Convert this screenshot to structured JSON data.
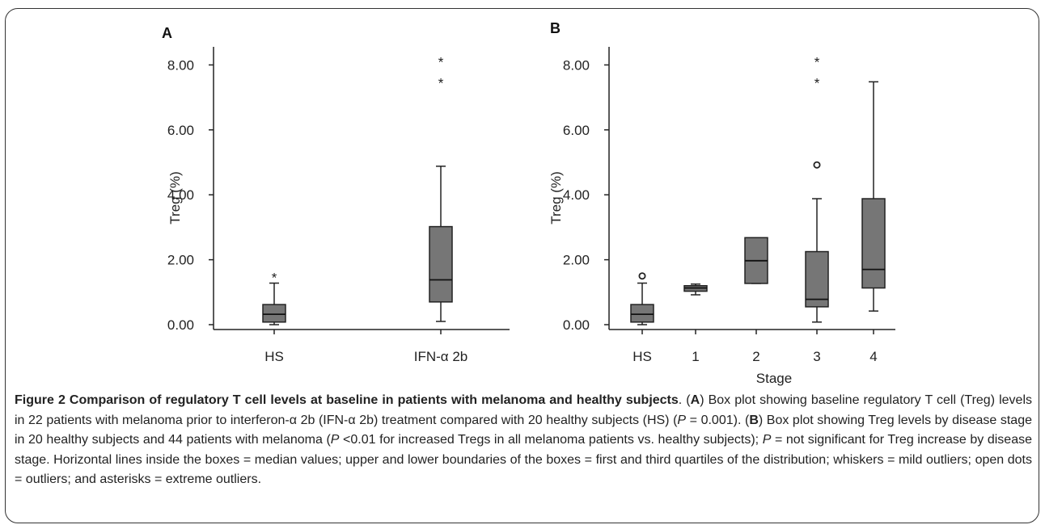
{
  "chart_data": [
    {
      "type": "boxplot",
      "panel": "A",
      "ylabel": "Treg (%)",
      "xlabel": "",
      "ylim": [
        0,
        8.5
      ],
      "yticks": [
        "0.00",
        "2.00",
        "4.00",
        "6.00",
        "8.00"
      ],
      "ytick_values": [
        0,
        2,
        4,
        6,
        8
      ],
      "grid": false,
      "categories": [
        "HS",
        "IFN-α 2b"
      ],
      "boxes": [
        {
          "category": "HS",
          "min": 0.0,
          "q1": 0.08,
          "median": 0.32,
          "q3": 0.62,
          "max": 1.28,
          "outliers": [],
          "extreme_outliers": [
            1.55
          ]
        },
        {
          "category": "IFN-α 2b",
          "min": 0.1,
          "q1": 0.7,
          "median": 1.38,
          "q3": 3.02,
          "max": 4.88,
          "outliers": [],
          "extreme_outliers": [
            7.55,
            8.2
          ]
        }
      ]
    },
    {
      "type": "boxplot",
      "panel": "B",
      "ylabel": "Treg (%)",
      "xlabel": "Stage",
      "ylim": [
        0,
        8.5
      ],
      "yticks": [
        "0.00",
        "2.00",
        "4.00",
        "6.00",
        "8.00"
      ],
      "ytick_values": [
        0,
        2,
        4,
        6,
        8
      ],
      "grid": false,
      "categories": [
        "HS",
        "1",
        "2",
        "3",
        "4"
      ],
      "boxes": [
        {
          "category": "HS",
          "min": 0.0,
          "q1": 0.08,
          "median": 0.32,
          "q3": 0.62,
          "max": 1.28,
          "outliers": [
            1.5
          ],
          "extreme_outliers": []
        },
        {
          "category": "1",
          "min": 0.92,
          "q1": 1.03,
          "median": 1.13,
          "q3": 1.2,
          "max": 1.25,
          "outliers": [],
          "extreme_outliers": []
        },
        {
          "category": "2",
          "min": 1.27,
          "q1": 1.27,
          "median": 1.97,
          "q3": 2.68,
          "max": 2.68,
          "outliers": [],
          "extreme_outliers": []
        },
        {
          "category": "3",
          "min": 0.08,
          "q1": 0.55,
          "median": 0.78,
          "q3": 2.25,
          "max": 3.88,
          "outliers": [
            4.92
          ],
          "extreme_outliers": [
            7.55,
            8.2
          ]
        },
        {
          "category": "4",
          "min": 0.42,
          "q1": 1.13,
          "median": 1.7,
          "q3": 3.88,
          "max": 7.48,
          "outliers": [],
          "extreme_outliers": []
        }
      ]
    }
  ],
  "colors": {
    "box_fill": "#767676",
    "stroke": "#222222",
    "frame": "#333333"
  },
  "caption": {
    "fig_label": "Figure 2 Comparison of regulatory T cell levels at baseline in patients with melanoma and healthy subjects",
    "s1": ". (",
    "A": "A",
    "s2": ") Box plot showing baseline regulatory T cell (Treg) levels in 22 patients with melanoma prior to interferon-α 2b (IFN-α 2b) treatment compared with 20 healthy subjects (HS) (",
    "P": "P",
    "s3": " = 0.001). (",
    "B": "B",
    "s4": ") Box plot showing Treg levels by disease stage in 20 healthy subjects and 44 patients with melanoma (",
    "s5": " <0.01 for increased Tregs in all melanoma patients vs. healthy subjects); ",
    "s6": " = not significant for Treg increase by disease stage. Horizontal lines inside the boxes = median values; upper and lower boundaries of the boxes = first and third quartiles of the distribution; whiskers = mild outliers; open dots = outliers; and asterisks = extreme outliers."
  }
}
